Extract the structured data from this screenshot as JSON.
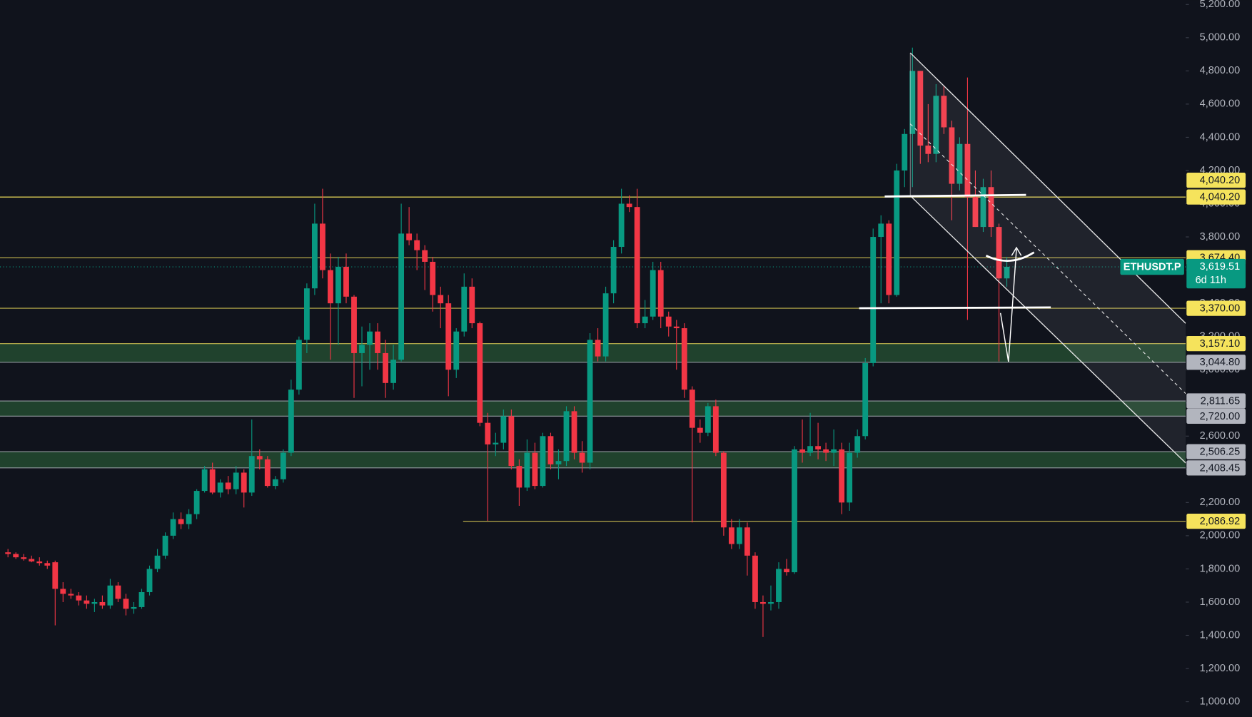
{
  "chart_data": {
    "type": "candlestick",
    "symbol": "ETHUSDT.P",
    "countdown": "6d 11h",
    "background": "#10131c",
    "up_color": "#089981",
    "down_color": "#f23645",
    "zone_color": "#2e6a3c",
    "ylim": [
      909,
      5226
    ],
    "yticks": [
      {
        "value": 1000,
        "label": "1,000.00"
      },
      {
        "value": 1200,
        "label": "1,200.00"
      },
      {
        "value": 1400,
        "label": "1,400.00"
      },
      {
        "value": 1600,
        "label": "1,600.00"
      },
      {
        "value": 1800,
        "label": "1,800.00"
      },
      {
        "value": 2000,
        "label": "2,000.00"
      },
      {
        "value": 2200,
        "label": "2,200.00"
      },
      {
        "value": 2400,
        "label": "2,400.00"
      },
      {
        "value": 2600,
        "label": "2,600.00"
      },
      {
        "value": 2800,
        "label": "2,800.00"
      },
      {
        "value": 3000,
        "label": "3,000.00"
      },
      {
        "value": 3200,
        "label": "3,200.00"
      },
      {
        "value": 3400,
        "label": "3,400.00"
      },
      {
        "value": 3600,
        "label": "3,600.00"
      },
      {
        "value": 3800,
        "label": "3,800.00"
      },
      {
        "value": 4000,
        "label": "4,000.00"
      },
      {
        "value": 4200,
        "label": "4,200.00"
      },
      {
        "value": 4400,
        "label": "4,400.00"
      },
      {
        "value": 4600,
        "label": "4,600.00"
      },
      {
        "value": 4800,
        "label": "4,800.00"
      },
      {
        "value": 5000,
        "label": "5,000.00"
      },
      {
        "value": 5200,
        "label": "5,200.00"
      }
    ],
    "open": [
      1900,
      1890,
      1870,
      1860,
      1845,
      1835,
      1840,
      1680,
      1650,
      1640,
      1610,
      1590,
      1600,
      1580,
      1700,
      1620,
      1560,
      1570,
      1660,
      1800,
      1880,
      2000,
      2100,
      2070,
      2130,
      2270,
      2400,
      2260,
      2320,
      2280,
      2380,
      2260,
      2480,
      2460,
      2300,
      2340,
      2500,
      2880,
      3180,
      3490,
      3880,
      3600,
      3400,
      3620,
      3440,
      3100,
      3150,
      3230,
      3100,
      2920,
      3060,
      3820,
      3780,
      3720,
      3650,
      3450,
      3400,
      3000,
      3230,
      3500,
      3280,
      2680,
      2550,
      2560,
      2720,
      2420,
      2290,
      2500,
      2300,
      2600,
      2430,
      2450,
      2750,
      2500,
      2440,
      3180,
      3080,
      3460,
      3740,
      4000,
      3980,
      3280,
      3320,
      3600,
      3320,
      3260,
      3250,
      2880,
      2650,
      2620,
      2780,
      2500,
      2050,
      1950,
      2050,
      1880,
      1600,
      1590,
      1600,
      1800,
      1780,
      2520,
      2500,
      2540,
      2520,
      2500,
      2520,
      2200,
      2500,
      2600,
      3040,
      3800,
      3880,
      3450,
      4200,
      4420,
      4800,
      4350,
      4300,
      4650,
      4460,
      4120,
      4360,
      4040,
      3860,
      4100,
      3860,
      3550
    ],
    "high": [
      1920,
      1900,
      1890,
      1880,
      1870,
      1850,
      1850,
      1720,
      1680,
      1660,
      1640,
      1620,
      1640,
      1740,
      1720,
      1650,
      1600,
      1680,
      1820,
      1920,
      2020,
      2140,
      2140,
      2160,
      2280,
      2420,
      2440,
      2340,
      2360,
      2420,
      2400,
      2700,
      2520,
      2480,
      2360,
      2520,
      2940,
      3200,
      3520,
      4000,
      4090,
      3700,
      3680,
      3700,
      3450,
      3260,
      3280,
      3280,
      3180,
      3150,
      4000,
      3980,
      3820,
      3750,
      3680,
      3500,
      3450,
      3250,
      3580,
      3550,
      3290,
      2740,
      2620,
      2760,
      2760,
      2460,
      2580,
      2560,
      2620,
      2620,
      2520,
      2780,
      2780,
      2570,
      3220,
      3250,
      3500,
      3780,
      4090,
      4050,
      4090,
      3420,
      3650,
      3650,
      3350,
      3300,
      3280,
      2900,
      2700,
      2800,
      2820,
      2510,
      2100,
      2100,
      2080,
      1900,
      1640,
      1700,
      1840,
      1860,
      2540,
      2700,
      2740,
      2680,
      2560,
      2640,
      2560,
      2560,
      2640,
      3070,
      3850,
      3930,
      3900,
      4240,
      4450,
      4940,
      4800,
      4600,
      4720,
      4710,
      4500,
      4400,
      4760,
      4200,
      4150,
      4200,
      3880,
      3680
    ],
    "low": [
      1870,
      1860,
      1850,
      1840,
      1820,
      1800,
      1460,
      1600,
      1620,
      1580,
      1560,
      1540,
      1560,
      1560,
      1600,
      1520,
      1530,
      1560,
      1640,
      1780,
      1860,
      1980,
      2040,
      2040,
      2100,
      2260,
      2250,
      2230,
      2250,
      2250,
      2170,
      2240,
      2400,
      2290,
      2280,
      2320,
      2480,
      2850,
      3100,
      3450,
      3550,
      3060,
      3150,
      3400,
      2830,
      2900,
      3000,
      3000,
      2830,
      2880,
      3050,
      3750,
      3600,
      3480,
      3350,
      3250,
      2840,
      2950,
      3200,
      3250,
      2660,
      2090,
      2480,
      2520,
      2400,
      2180,
      2270,
      2280,
      2290,
      2400,
      2340,
      2420,
      2460,
      2380,
      2400,
      3050,
      3050,
      3400,
      3700,
      3950,
      3250,
      3250,
      3300,
      3250,
      3200,
      3000,
      2830,
      2080,
      2560,
      2600,
      2480,
      2000,
      1920,
      1920,
      1760,
      1560,
      1390,
      1550,
      1560,
      1760,
      1770,
      2440,
      2480,
      2460,
      2450,
      2420,
      2130,
      2150,
      2470,
      2580,
      3020,
      3400,
      3400,
      3440,
      4100,
      4100,
      4240,
      4250,
      4250,
      4420,
      3900,
      4080,
      3300,
      3860,
      3830,
      3800,
      3050,
      3500
    ],
    "close": [
      1890,
      1870,
      1860,
      1845,
      1835,
      1820,
      1680,
      1650,
      1640,
      1610,
      1590,
      1600,
      1580,
      1700,
      1620,
      1560,
      1570,
      1660,
      1800,
      1880,
      2000,
      2100,
      2070,
      2130,
      2270,
      2400,
      2260,
      2320,
      2280,
      2380,
      2260,
      2480,
      2460,
      2300,
      2340,
      2500,
      2880,
      3180,
      3490,
      3880,
      3600,
      3400,
      3620,
      3440,
      3100,
      3150,
      3230,
      3100,
      2920,
      3060,
      3820,
      3780,
      3720,
      3650,
      3450,
      3400,
      3000,
      3230,
      3500,
      3280,
      2680,
      2550,
      2560,
      2720,
      2420,
      2290,
      2500,
      2300,
      2600,
      2430,
      2450,
      2750,
      2500,
      2440,
      3180,
      3080,
      3460,
      3740,
      4000,
      3980,
      3280,
      3320,
      3600,
      3320,
      3260,
      3250,
      2880,
      2650,
      2620,
      2780,
      2500,
      2050,
      1950,
      2050,
      1880,
      1600,
      1590,
      1600,
      1800,
      1780,
      2520,
      2500,
      2540,
      2520,
      2500,
      2520,
      2200,
      2500,
      2600,
      3040,
      3800,
      3880,
      3450,
      4200,
      4420,
      4800,
      4350,
      4300,
      4650,
      4460,
      4120,
      4360,
      4040,
      3860,
      4100,
      3860,
      3550,
      3620
    ],
    "levels": [
      {
        "value": 4040.2,
        "label": "4,040.20",
        "color": "#f5e35c"
      },
      {
        "value": 4040.2,
        "label": "4,040.20",
        "color": "#f5e35c"
      },
      {
        "value": 3674.4,
        "label": "3,674.40",
        "color": "#f5e35c"
      },
      {
        "value": 3370,
        "label": "3,370.00",
        "color": "#f5e35c"
      },
      {
        "value": 3157.1,
        "label": "3,157.10",
        "color": "#f5e35c"
      },
      {
        "value": 3044.8,
        "label": "3,044.80",
        "color": "#b2b5be"
      },
      {
        "value": 2811.65,
        "label": "2,811.65",
        "color": "#b2b5be"
      },
      {
        "value": 2720,
        "label": "2,720.00",
        "color": "#b2b5be"
      },
      {
        "value": 2506.25,
        "label": "2,506.25",
        "color": "#b2b5be"
      },
      {
        "value": 2408.45,
        "label": "2,408.45",
        "color": "#b2b5be"
      },
      {
        "value": 2086.92,
        "label": "2,086.92",
        "color": "#f5e35c"
      }
    ],
    "zones": [
      {
        "high": 3157.1,
        "low": 3044.8
      },
      {
        "high": 2811.65,
        "low": 2720
      },
      {
        "high": 2506.25,
        "low": 2408.45
      }
    ],
    "last": {
      "value": 3619.51,
      "label": "3,619.51",
      "color": "#089981"
    }
  }
}
